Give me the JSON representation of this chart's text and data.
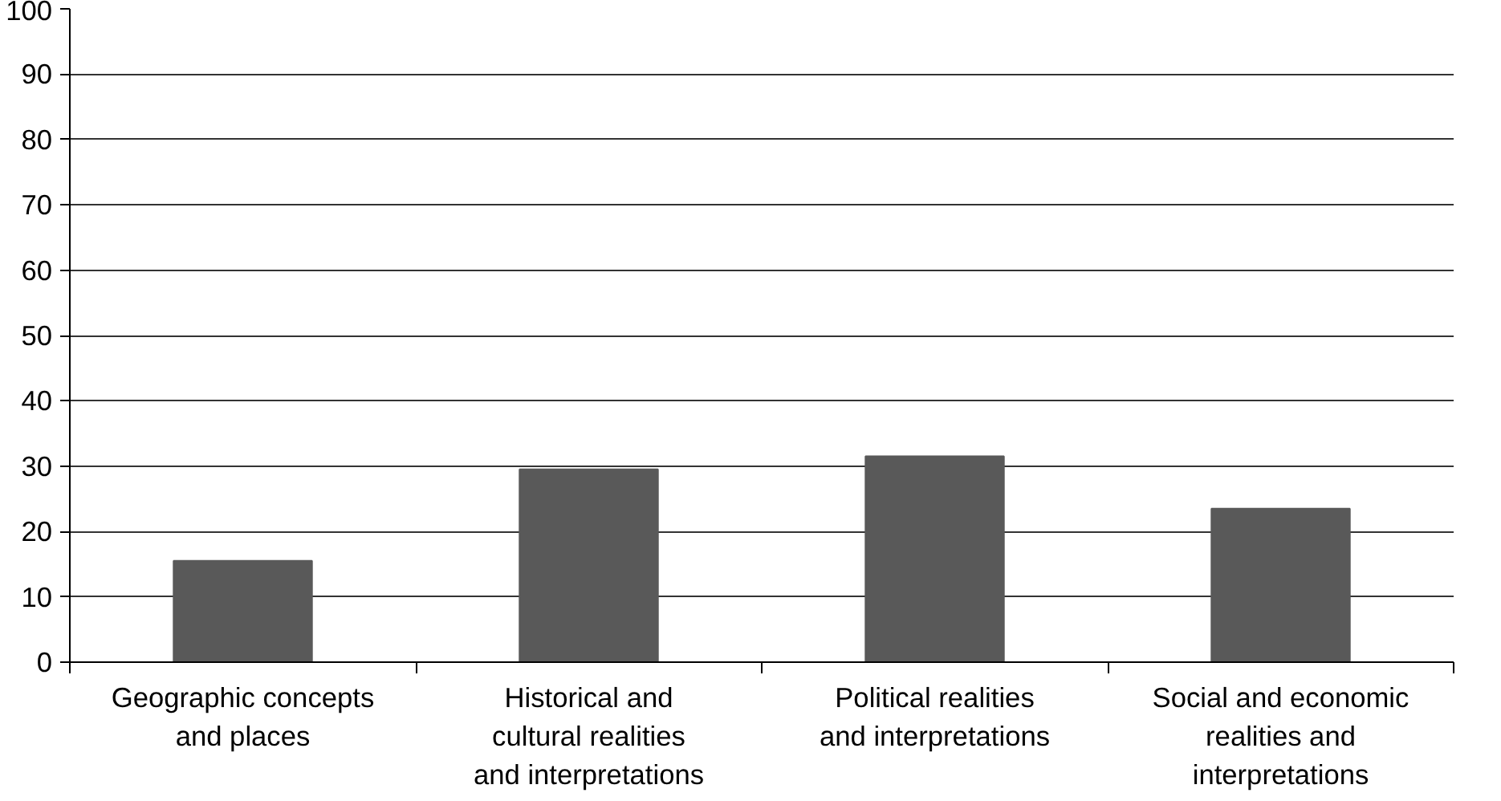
{
  "chart_data": {
    "type": "bar",
    "categories": [
      "Geographic concepts and places",
      "Historical and cultural realities and interpretations",
      "Political realities and interpretations",
      "Social and economic realities and interpretations"
    ],
    "values": [
      15.5,
      29.5,
      31.5,
      23.5
    ],
    "color": "#595959",
    "ylim": [
      0,
      100
    ],
    "yticks": [
      0,
      10,
      20,
      30,
      40,
      50,
      60,
      70,
      80,
      90,
      100
    ],
    "grid": "y"
  }
}
